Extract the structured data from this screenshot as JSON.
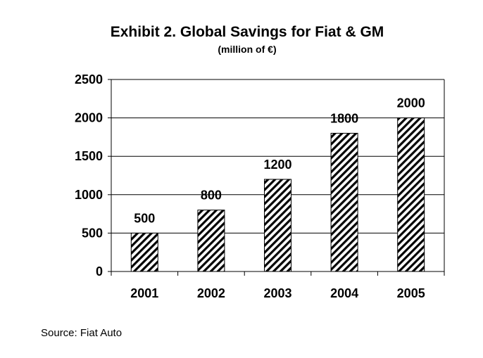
{
  "chart_data": {
    "type": "bar",
    "title": "Exhibit 2. Global Savings for Fiat & GM",
    "subtitle": "(million of €)",
    "categories": [
      "2001",
      "2002",
      "2003",
      "2004",
      "2005"
    ],
    "values": [
      500,
      800,
      1200,
      1800,
      2000
    ],
    "data_labels": [
      "500",
      "800",
      "1200",
      "1800",
      "2000"
    ],
    "ylim": [
      0,
      2500
    ],
    "yticks": [
      0,
      500,
      1000,
      1500,
      2000,
      2500
    ],
    "xlabel": "",
    "ylabel": "",
    "grid": true,
    "legend": false,
    "bar_fill": "diagonal-hatch",
    "colors": {
      "bar_fill": "#ffffff",
      "hatch": "#000000",
      "gridline": "#000000",
      "text": "#000000"
    }
  },
  "source": "Source: Fiat Auto"
}
